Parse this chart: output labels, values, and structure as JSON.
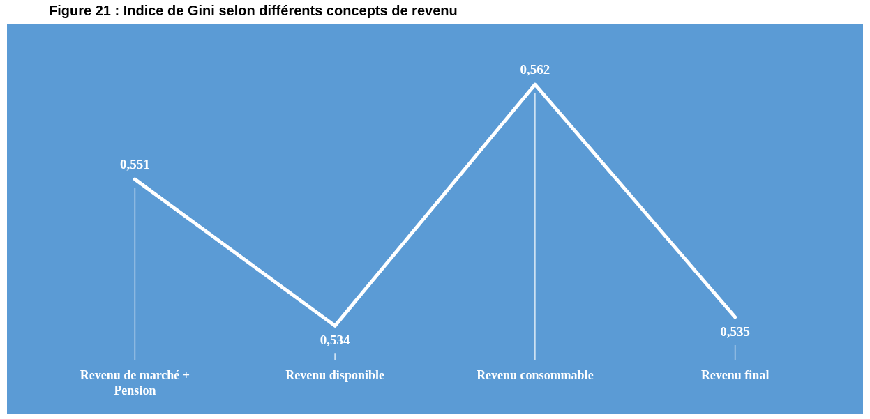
{
  "chart_data": {
    "type": "line",
    "title": "Figure 21 : Indice de Gini selon différents concepts de revenu",
    "categories": [
      "Revenu de marché + Pension",
      "Revenu disponible",
      "Revenu consommable",
      "Revenu final"
    ],
    "series": [
      {
        "color": "#ffffff",
        "values": [
          0.551,
          0.534,
          0.562,
          0.535
        ],
        "value_labels": [
          "0,551",
          "0,534",
          "0,562",
          "0,535"
        ]
      }
    ],
    "legend": false,
    "grid": "x",
    "tick_labels": "x"
  }
}
